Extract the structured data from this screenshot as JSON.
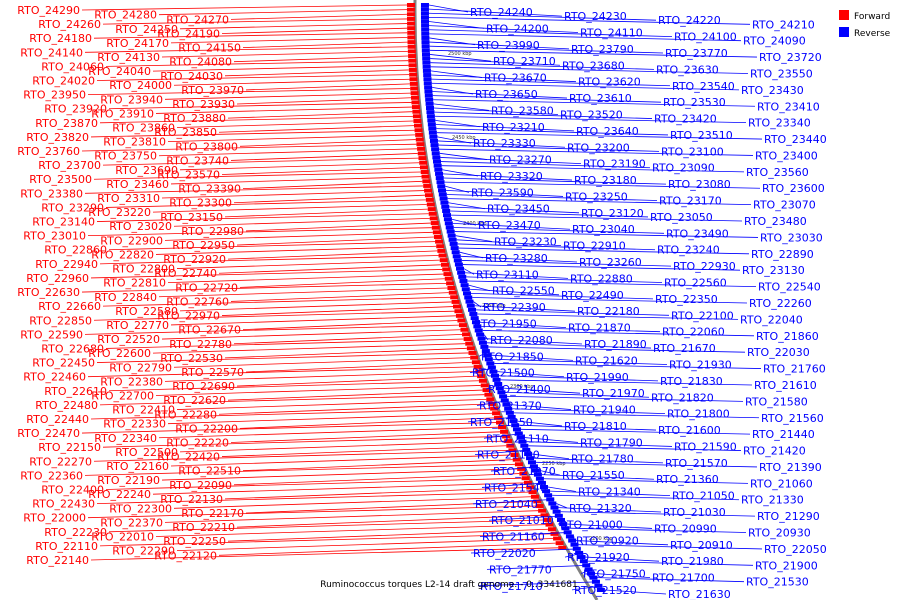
{
  "legend": {
    "forward": {
      "label": "Forward",
      "color": "#ff0000"
    },
    "reverse": {
      "label": "Reverse",
      "color": "#0000ff"
    }
  },
  "title": "Ruminococcus torques L2-14 draft genome. - 0..3341681",
  "ticks": [
    "2500 kbp",
    "2450 kbp",
    "2400 kbp",
    "2350 kbp",
    "2300 kbp",
    "2250 kbp",
    "2200 kbp"
  ],
  "forward_labels": [
    "RTO_24290",
    "RTO_24280",
    "RTO_24270",
    "RTO_24260",
    "RTO_24250",
    "RTO_24190",
    "RTO_24180",
    "RTO_24170",
    "RTO_24150",
    "RTO_24140",
    "RTO_24130",
    "RTO_24080",
    "RTO_24060",
    "RTO_24040",
    "RTO_24030",
    "RTO_24020",
    "RTO_24000",
    "RTO_23970",
    "RTO_23950",
    "RTO_23940",
    "RTO_23930",
    "RTO_23920",
    "RTO_23910",
    "RTO_23880",
    "RTO_23870",
    "RTO_23860",
    "RTO_23850",
    "RTO_23820",
    "RTO_23810",
    "RTO_23800",
    "RTO_23760",
    "RTO_23750",
    "RTO_23740",
    "RTO_23700",
    "RTO_23690",
    "RTO_23570",
    "RTO_23500",
    "RTO_23460",
    "RTO_23390",
    "RTO_23380",
    "RTO_23310",
    "RTO_23300",
    "RTO_23290",
    "RTO_23220",
    "RTO_23150",
    "RTO_23140",
    "RTO_23020",
    "RTO_22980",
    "RTO_23010",
    "RTO_22900",
    "RTO_22950",
    "RTO_22860",
    "RTO_22820",
    "RTO_22920",
    "RTO_22940",
    "RTO_22800",
    "RTO_22740",
    "RTO_22960",
    "RTO_22810",
    "RTO_22720",
    "RTO_22630",
    "RTO_22840",
    "RTO_22760",
    "RTO_22660",
    "RTO_22580",
    "RTO_22970",
    "RTO_22850",
    "RTO_22770",
    "RTO_22670",
    "RTO_22590",
    "RTO_22520",
    "RTO_22780",
    "RTO_22680",
    "RTO_22600",
    "RTO_22530",
    "RTO_22450",
    "RTO_22790",
    "RTO_22570",
    "RTO_22460",
    "RTO_22380",
    "RTO_22690",
    "RTO_22610",
    "RTO_22700",
    "RTO_22620",
    "RTO_22480",
    "RTO_22410",
    "RTO_22280",
    "RTO_22440",
    "RTO_22330",
    "RTO_22200",
    "RTO_22470",
    "RTO_22340",
    "RTO_22220",
    "RTO_22150",
    "RTO_22500",
    "RTO_22420",
    "RTO_22270",
    "RTO_22160",
    "RTO_22510",
    "RTO_22360",
    "RTO_22190",
    "RTO_22090",
    "RTO_22400",
    "RTO_22240",
    "RTO_22130",
    "RTO_22430",
    "RTO_22300",
    "RTO_22170",
    "RTO_22000",
    "RTO_22370",
    "RTO_22210",
    "RTO_22230",
    "RTO_22010",
    "RTO_22250",
    "RTO_22110",
    "RTO_22290",
    "RTO_22120",
    "RTO_22140"
  ],
  "reverse_labels": [
    "RTO_24240",
    "RTO_24230",
    "RTO_24220",
    "RTO_24210",
    "RTO_24200",
    "RTO_24110",
    "RTO_24100",
    "RTO_24090",
    "RTO_23990",
    "RTO_23790",
    "RTO_23770",
    "RTO_23720",
    "RTO_23710",
    "RTO_23680",
    "RTO_23630",
    "RTO_23550",
    "RTO_23670",
    "RTO_23620",
    "RTO_23540",
    "RTO_23430",
    "RTO_23650",
    "RTO_23610",
    "RTO_23530",
    "RTO_23410",
    "RTO_23580",
    "RTO_23520",
    "RTO_23420",
    "RTO_23340",
    "RTO_23210",
    "RTO_23640",
    "RTO_23510",
    "RTO_23440",
    "RTO_23330",
    "RTO_23200",
    "RTO_23100",
    "RTO_23400",
    "RTO_23270",
    "RTO_23190",
    "RTO_23090",
    "RTO_23560",
    "RTO_23320",
    "RTO_23180",
    "RTO_23080",
    "RTO_23600",
    "RTO_23590",
    "RTO_23250",
    "RTO_23170",
    "RTO_23070",
    "RTO_23450",
    "RTO_23120",
    "RTO_23050",
    "RTO_23480",
    "RTO_23470",
    "RTO_23040",
    "RTO_23490",
    "RTO_23030",
    "RTO_23230",
    "RTO_22910",
    "RTO_23240",
    "RTO_22890",
    "RTO_23280",
    "RTO_23260",
    "RTO_22930",
    "RTO_23130",
    "RTO_23110",
    "RTO_22880",
    "RTO_22560",
    "RTO_22540",
    "RTO_22550",
    "RTO_22490",
    "RTO_22350",
    "RTO_22260",
    "RTO_22390",
    "RTO_22180",
    "RTO_22100",
    "RTO_22040",
    "RTO_21950",
    "RTO_21870",
    "RTO_22060",
    "RTO_21860",
    "RTO_22080",
    "RTO_21890",
    "RTO_21670",
    "RTO_22030",
    "RTO_21850",
    "RTO_21620",
    "RTO_21930",
    "RTO_21760",
    "RTO_21500",
    "RTO_21990",
    "RTO_21830",
    "RTO_21610",
    "RTO_21400",
    "RTO_21970",
    "RTO_21820",
    "RTO_21580",
    "RTO_21370",
    "RTO_21940",
    "RTO_21800",
    "RTO_21560",
    "RTO_21350",
    "RTO_21810",
    "RTO_21600",
    "RTO_21440",
    "RTO_21110",
    "RTO_21790",
    "RTO_21590",
    "RTO_21420",
    "RTO_21100",
    "RTO_21780",
    "RTO_21570",
    "RTO_21390",
    "RTO_21070",
    "RTO_21550",
    "RTO_21360",
    "RTO_21060",
    "RTO_21540",
    "RTO_21340",
    "RTO_21050",
    "RTO_21330",
    "RTO_21040",
    "RTO_21320",
    "RTO_21030",
    "RTO_21290",
    "RTO_21010",
    "RTO_21000",
    "RTO_20990",
    "RTO_20930",
    "RTO_21160",
    "RTO_20920",
    "RTO_20910",
    "RTO_22050",
    "RTO_22020",
    "RTO_21920",
    "RTO_21980",
    "RTO_21900",
    "RTO_21770",
    "RTO_21750",
    "RTO_21700",
    "RTO_21530",
    "RTO_21710",
    "RTO_21520",
    "RTO_21630"
  ]
}
